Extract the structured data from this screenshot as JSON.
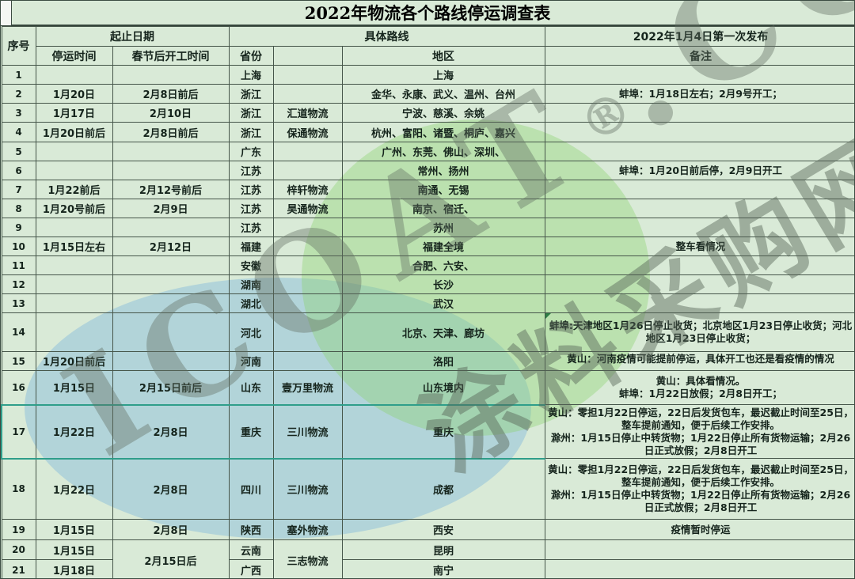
{
  "title": "2022年物流各个路线停运调查表",
  "header": {
    "no": "序号",
    "dates_group": "起止日期",
    "stop_time": "停运时间",
    "resume_time": "春节后开工时间",
    "route_group": "具体路线",
    "province": "省份",
    "company": "",
    "region": "地区",
    "release": "2022年1月4日第一次发布",
    "notes": "备注"
  },
  "rows": [
    {
      "no": "1",
      "stop": "",
      "resume": "",
      "province": "上海",
      "company": "",
      "region": "上海",
      "notes": []
    },
    {
      "no": "2",
      "stop": "1月20日",
      "resume": "2月8日前后",
      "province": "浙江",
      "company": "",
      "region": "金华、永康、武义、温州、台州",
      "notes": [
        "蚌埠：1月18日左右；2月9号开工；"
      ]
    },
    {
      "no": "3",
      "stop": "1月17日",
      "resume": "2月10日",
      "province": "浙江",
      "company": "汇道物流",
      "region": "宁波、慈溪、余姚",
      "notes": []
    },
    {
      "no": "4",
      "stop": "1月20日前后",
      "resume": "2月8日前后",
      "province": "浙江",
      "company": "保通物流",
      "region": "杭州、富阳、诸暨、桐庐、嘉兴",
      "notes": []
    },
    {
      "no": "5",
      "stop": "",
      "resume": "",
      "province": "广东",
      "company": "",
      "region": "广州、东莞、佛山、深圳、",
      "notes": []
    },
    {
      "no": "6",
      "stop": "",
      "resume": "",
      "province": "江苏",
      "company": "",
      "region": "常州、扬州",
      "notes": [
        "蚌埠：1月20日前后停，2月9日开工"
      ]
    },
    {
      "no": "7",
      "stop": "1月22前后",
      "resume": "2月12号前后",
      "province": "江苏",
      "company": "梓轩物流",
      "region": "南通、无锡",
      "notes": []
    },
    {
      "no": "8",
      "stop": "1月20号前后",
      "resume": "2月9日",
      "province": "江苏",
      "company": "昊通物流",
      "region": "南京、宿迁、",
      "notes": []
    },
    {
      "no": "9",
      "stop": "",
      "resume": "",
      "province": "江苏",
      "company": "",
      "region": "苏州",
      "notes": []
    },
    {
      "no": "10",
      "stop": "1月15日左右",
      "resume": "2月12日",
      "province": "福建",
      "company": "",
      "region": "福建全境",
      "notes": [
        "整车看情况"
      ]
    },
    {
      "no": "11",
      "stop": "",
      "resume": "",
      "province": "安徽",
      "company": "",
      "region": "合肥、六安、",
      "notes": []
    },
    {
      "no": "12",
      "stop": "",
      "resume": "",
      "province": "湖南",
      "company": "",
      "region": "长沙",
      "notes": []
    },
    {
      "no": "13",
      "stop": "",
      "resume": "",
      "province": "湖北",
      "company": "",
      "region": "武汉",
      "notes": []
    },
    {
      "no": "14",
      "stop": "",
      "resume": "",
      "province": "河北",
      "company": "",
      "region": "北京、天津、廊坊",
      "notes": [
        "蚌埠:天津地区1月26日停止收货；北京地区1月23日停止收货；河北地区1月23日停止收货；"
      ]
    },
    {
      "no": "15",
      "stop": "1月20日前后",
      "resume": "",
      "province": "河南",
      "company": "",
      "region": "洛阳",
      "notes": [
        "黄山：河南疫情可能提前停运，具体开工也还是看疫情的情况"
      ]
    },
    {
      "no": "16",
      "stop": "1月15日",
      "resume": "2月15日前后",
      "province": "山东",
      "company": "壹万里物流",
      "region": "山东境内",
      "notes": [
        "黄山：具体看情况。",
        "蚌埠：1月22日放假；2月8日开工；"
      ]
    },
    {
      "no": "17",
      "stop": "1月22日",
      "resume": "2月8日",
      "province": "重庆",
      "company": "三川物流",
      "region": "重庆",
      "notes": [
        "黄山：零担1月22日停运，22日后发货包车，最迟截止时间至25日，整车提前通知，便于后续工作安排。",
        "滁州：1月15日停止中转货物；1月22日停止所有货物运输；2月26日正式放假；2月8日开工"
      ]
    },
    {
      "no": "18",
      "stop": "1月22日",
      "resume": "2月8日",
      "province": "四川",
      "company": "三川物流",
      "region": "成都",
      "notes": [
        "黄山：零担1月22日停运，22日后发货包车，最迟截止时间至25日，整车提前通知，便于后续工作安排。",
        "滁州：1月15日停止中转货物；1月22日停止所有货物运输；2月26日正式放假；2月8日开工"
      ]
    },
    {
      "no": "19",
      "stop": "1月15日",
      "resume": "2月8日",
      "province": "陕西",
      "company": "塞外物流",
      "region": "西安",
      "notes": [
        "疫情暂时停运"
      ]
    },
    {
      "no": "20",
      "stop": "1月15日",
      "resume": "2月15日后",
      "province": "云南",
      "company": "三志物流",
      "region": "昆明",
      "notes": []
    },
    {
      "no": "21",
      "stop": "1月18日",
      "resume": "",
      "province": "广西",
      "company": "",
      "region": "南宁",
      "notes": []
    }
  ],
  "watermark": {
    "brand": "ICOAT",
    "reg": "®",
    "domain": ".CC",
    "site": "涂料采购网"
  }
}
